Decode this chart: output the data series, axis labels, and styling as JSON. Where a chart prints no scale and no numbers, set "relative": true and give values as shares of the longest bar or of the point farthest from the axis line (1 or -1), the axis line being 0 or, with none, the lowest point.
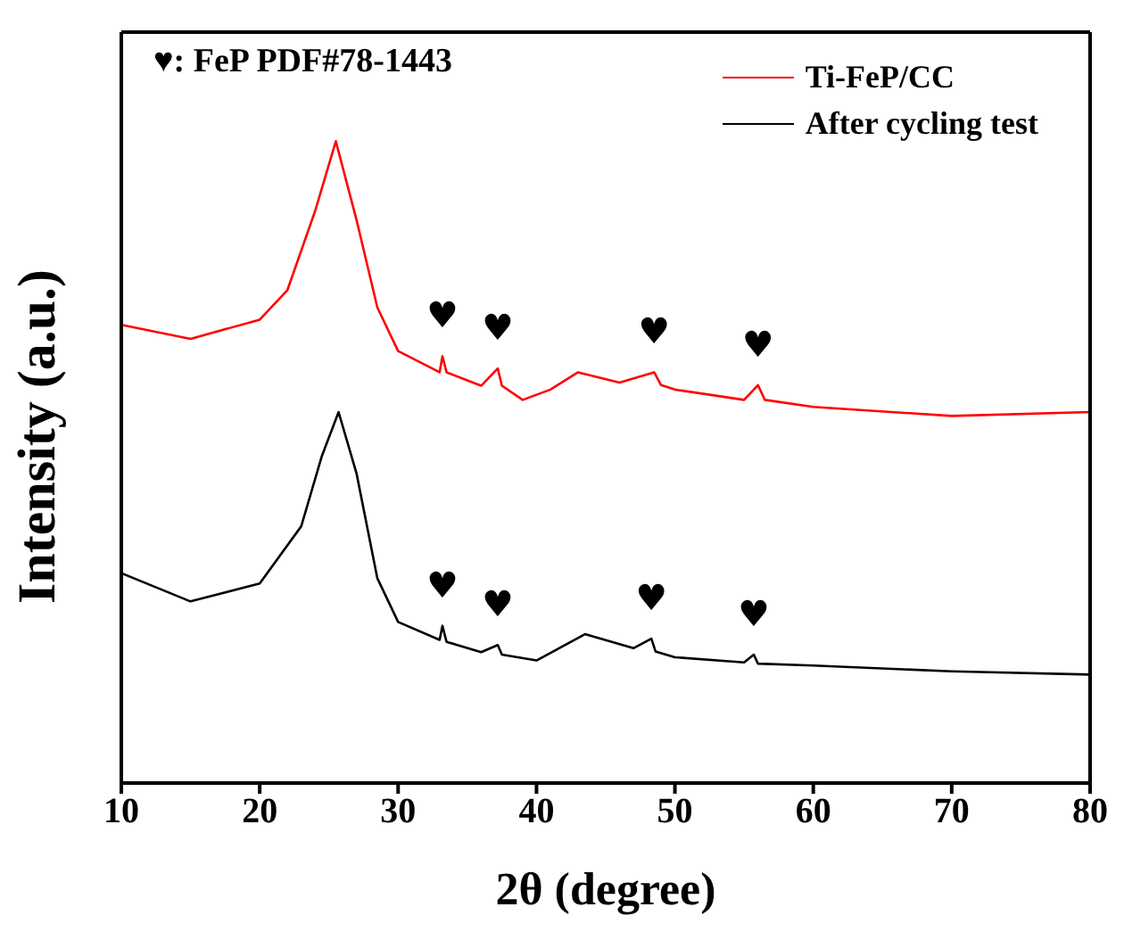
{
  "chart_data": {
    "type": "line",
    "relative": true,
    "xlabel": "2θ (degree)",
    "ylabel": "Intensity (a.u.)",
    "xlim": [
      10,
      80
    ],
    "xticks": [
      10,
      20,
      30,
      40,
      50,
      60,
      70,
      80
    ],
    "legend": "top right",
    "grid": false,
    "marker": "none",
    "line_style": "solid",
    "annotations": [
      "♥: FeP PDF#78-1443",
      {
        "text": "♥",
        "x": 33.2,
        "y": 0.665
      },
      {
        "text": "♥",
        "x": 37.2,
        "y": 0.646
      },
      {
        "text": "♥",
        "x": 48.5,
        "y": 0.64
      },
      {
        "text": "♥",
        "x": 56,
        "y": 0.62
      },
      {
        "text": "♥",
        "x": 33.2,
        "y": 0.245
      },
      {
        "text": "♥",
        "x": 37.2,
        "y": 0.215
      },
      {
        "text": "♥",
        "x": 48.3,
        "y": 0.225
      },
      {
        "text": "♥",
        "x": 55.7,
        "y": 0.2
      }
    ],
    "series": [
      {
        "name": "Ti-FeP/CC",
        "color": "#ff0000",
        "x": [
          10,
          15,
          20,
          22,
          24,
          25.5,
          27,
          28.5,
          30,
          33,
          33.2,
          33.5,
          36,
          37.2,
          37.5,
          39,
          41,
          43,
          46,
          48.5,
          49,
          50,
          55,
          56,
          56.5,
          60,
          70,
          80
        ],
        "values": [
          0.714,
          0.692,
          0.722,
          0.768,
          0.891,
          1,
          0.877,
          0.741,
          0.673,
          0.64,
          0.665,
          0.64,
          0.619,
          0.646,
          0.619,
          0.597,
          0.613,
          0.64,
          0.624,
          0.64,
          0.62,
          0.613,
          0.597,
          0.62,
          0.597,
          0.586,
          0.572,
          0.578
        ]
      },
      {
        "name": "After cycling test",
        "color": "#000000",
        "x": [
          10,
          15,
          20,
          23,
          24.5,
          25.7,
          27,
          28.5,
          30,
          33,
          33.2,
          33.5,
          36,
          37.2,
          37.5,
          40,
          43.5,
          47,
          48.3,
          48.6,
          50,
          55,
          55.7,
          56,
          60,
          70,
          80
        ],
        "values": [
          0.327,
          0.283,
          0.311,
          0.4,
          0.51,
          0.578,
          0.482,
          0.319,
          0.251,
          0.223,
          0.245,
          0.22,
          0.204,
          0.215,
          0.2,
          0.191,
          0.232,
          0.21,
          0.225,
          0.205,
          0.196,
          0.188,
          0.2,
          0.186,
          0.183,
          0.174,
          0.169
        ]
      }
    ]
  }
}
